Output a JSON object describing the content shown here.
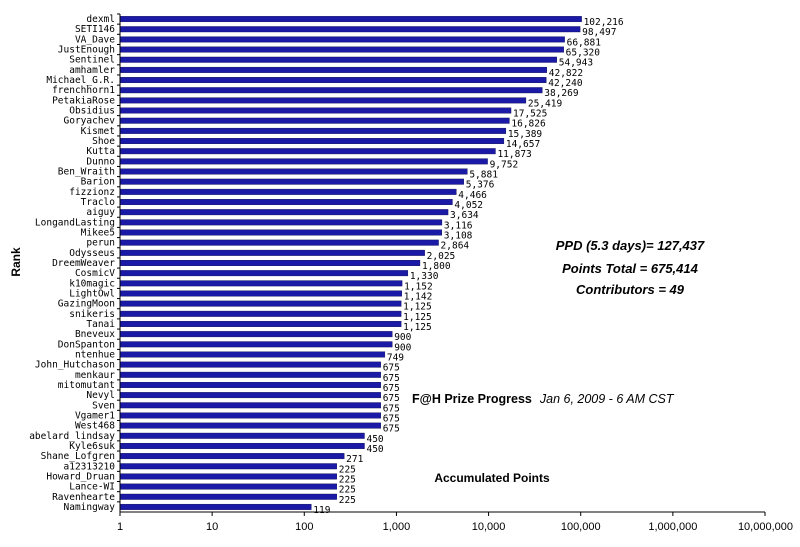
{
  "chart_data": {
    "type": "bar",
    "orientation": "horizontal",
    "xscale": "log",
    "xlim": [
      1,
      10000000
    ],
    "xticks": [
      "1",
      "10",
      "100",
      "1,000",
      "10,000",
      "100,000",
      "1,000,000",
      "10,000,000"
    ],
    "xlabel": "Accumulated Points",
    "ylabel": "Rank",
    "grid": false,
    "bar_color": "#1a1aa6",
    "categories": [
      "dexml",
      "SETI146",
      "VA_Dave",
      "JustEnough",
      "Sentinel",
      "amhamler",
      "Michael_G.R.",
      "frenchhorn1",
      "PetakiaRose",
      "Obsidius",
      "Goryachev",
      "Kismet",
      "Shoe",
      "Kutta",
      "Dunno",
      "Ben_Wraith",
      "Barion",
      "fizzionz",
      "Traclo",
      "aiguy",
      "LongandLasting",
      "Mikee5",
      "perun",
      "Odysseus",
      "DreemWeaver",
      "CosmicV",
      "k10magic",
      "LightOwl",
      "GazingMoon",
      "snikeris",
      "Tanai",
      "Bneveux",
      "DonSpanton",
      "ntenhue",
      "John_Hutchason",
      "menkaur",
      "mitomutant",
      "Nevyl",
      "Sven",
      "Vgamer1",
      "West468",
      "abelard_lindsay",
      "Kyle6suk",
      "Shane_Lofgren",
      "a12313210",
      "Howard_Druan",
      "Lance-WI",
      "Ravenhearte",
      "Namingway"
    ],
    "values": [
      102216,
      98497,
      66881,
      65320,
      54943,
      42822,
      42240,
      38269,
      25419,
      17525,
      16826,
      15389,
      14657,
      11873,
      9752,
      5881,
      5376,
      4466,
      4052,
      3634,
      3116,
      3108,
      2864,
      2025,
      1800,
      1330,
      1152,
      1142,
      1125,
      1125,
      1125,
      900,
      900,
      749,
      675,
      675,
      675,
      675,
      675,
      675,
      675,
      450,
      450,
      271,
      225,
      225,
      225,
      225,
      119
    ],
    "value_labels": [
      "102,216",
      "98,497",
      "66,881",
      "65,320",
      "54,943",
      "42,822",
      "42,240",
      "38,269",
      "25,419",
      "17,525",
      "16,826",
      "15,389",
      "14,657",
      "11,873",
      "9,752",
      "5,881",
      "5,376",
      "4,466",
      "4,052",
      "3,634",
      "3,116",
      "3,108",
      "2,864",
      "2,025",
      "1,800",
      "1,330",
      "1,152",
      "1,142",
      "1,125",
      "1,125",
      "1,125",
      "900",
      "900",
      "749",
      "675",
      "675",
      "675",
      "675",
      "675",
      "675",
      "675",
      "450",
      "450",
      "271",
      "225",
      "225",
      "225",
      "225",
      "119"
    ]
  },
  "annotations": {
    "ppd": "PPD (5.3 days)= 127,437",
    "points_total": "Points Total = 675,414",
    "contributors": "Contributors = 49",
    "progress_title": "F@H Prize Progress",
    "progress_date": "Jan 6, 2009 - 6 AM CST"
  }
}
